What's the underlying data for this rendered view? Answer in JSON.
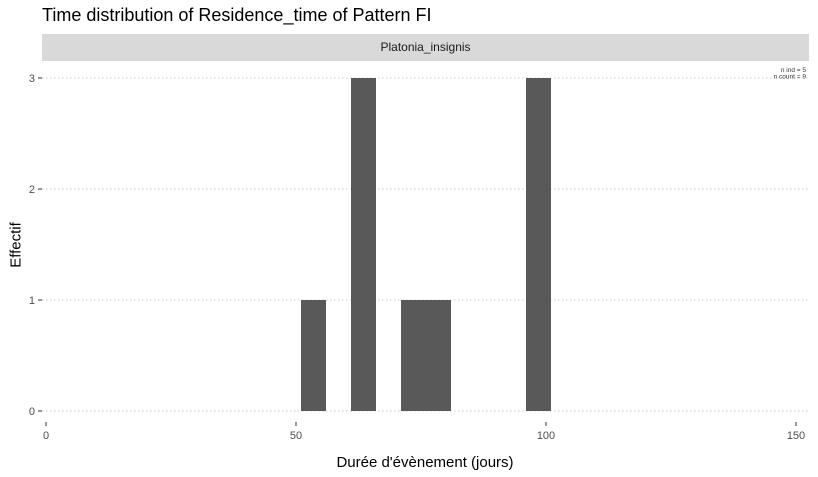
{
  "chart_data": {
    "type": "bar",
    "title": "Time distribution of Residence_time of Pattern FI",
    "facet": "Platonia_insignis",
    "xlabel": "Durée d'évènement (jours)",
    "ylabel": "Effectif",
    "xlim": [
      0,
      150
    ],
    "ylim": [
      0,
      3
    ],
    "x_ticks": [
      0,
      50,
      100,
      150
    ],
    "y_ticks": [
      0,
      1,
      2,
      3
    ],
    "bin_width": 5,
    "bins": [
      {
        "x_start": 51,
        "x_end": 56,
        "count": 1
      },
      {
        "x_start": 61,
        "x_end": 66,
        "count": 3
      },
      {
        "x_start": 71,
        "x_end": 76,
        "count": 1
      },
      {
        "x_start": 76,
        "x_end": 81,
        "count": 1
      },
      {
        "x_start": 96,
        "x_end": 101,
        "count": 3
      }
    ],
    "annotations": [
      "n ind =  5",
      "n count =  9"
    ],
    "grid": "horizontal dotted",
    "colors": {
      "bar": "#595959",
      "grid": "#cccccc",
      "strip": "#d9d9d9"
    }
  }
}
